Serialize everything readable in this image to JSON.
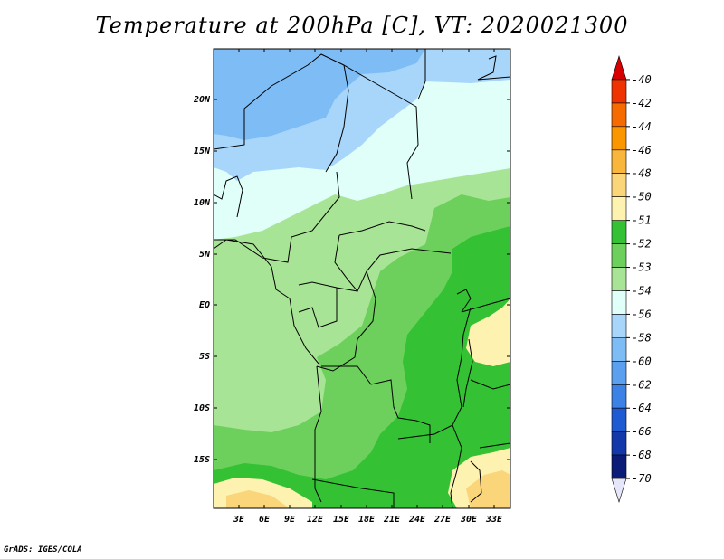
{
  "title": "Temperature at 200hPa [C], VT: 2020021300",
  "credit": "GrADS: IGES/COLA",
  "map": {
    "lat_labels": [
      "20N",
      "15N",
      "10N",
      "5N",
      "EQ",
      "5S",
      "10S",
      "15S"
    ],
    "lon_labels": [
      "3E",
      "6E",
      "9E",
      "12E",
      "15E",
      "18E",
      "21E",
      "24E",
      "27E",
      "30E",
      "33E"
    ]
  },
  "colorbar": {
    "labels": [
      "-40",
      "-42",
      "-44",
      "-46",
      "-48",
      "-50",
      "-51",
      "-52",
      "-53",
      "-54",
      "-56",
      "-58",
      "-60",
      "-62",
      "-64",
      "-66",
      "-68",
      "-70"
    ],
    "colors": [
      "#d60000",
      "#ef3300",
      "#f56b00",
      "#f99600",
      "#f9b63c",
      "#fbd57a",
      "#fdf2b0",
      "#34c234",
      "#6ed05c",
      "#a8e495",
      "#e0fff8",
      "#a8d6fa",
      "#7ebcf6",
      "#5aa0ee",
      "#3c82e6",
      "#1e5ad2",
      "#1238aa",
      "#0a1c78",
      "#e6e6fa"
    ]
  },
  "field_colors": {
    "c54": "#e0fff8",
    "c56": "#a8d6fa",
    "c58": "#7ebcf6",
    "c53": "#a8e495",
    "c52": "#6ed05c",
    "c51": "#34c234",
    "c50": "#fdf2b0",
    "c48": "#fbd57a"
  }
}
